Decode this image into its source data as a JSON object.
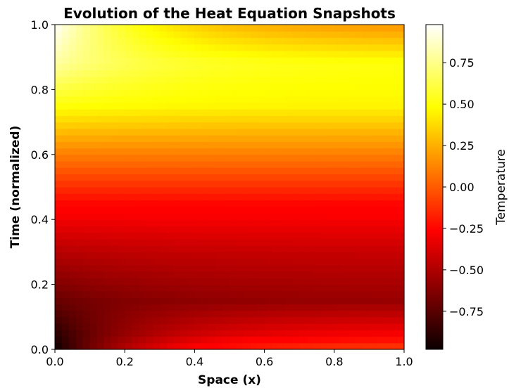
{
  "chart_data": {
    "type": "heatmap",
    "title": "Evolution of the Heat Equation Snapshots",
    "xlabel": "Space (x)",
    "ylabel": "Time (normalized)",
    "xlim": [
      0.0,
      1.0
    ],
    "ylim": [
      0.0,
      1.0
    ],
    "x_ticks": [
      "0.0",
      "0.2",
      "0.4",
      "0.6",
      "0.8",
      "1.0"
    ],
    "y_ticks": [
      "0.0",
      "0.2",
      "0.4",
      "0.6",
      "0.8",
      "1.0"
    ],
    "colormap": "hot",
    "colorbar": {
      "label": "Temperature",
      "range": [
        -0.98,
        0.98
      ],
      "ticks": [
        "−0.75",
        "−0.50",
        "−0.25",
        "0.00",
        "0.25",
        "0.50",
        "0.75"
      ],
      "tick_values": [
        -0.75,
        -0.5,
        -0.25,
        0.0,
        0.25,
        0.5,
        0.75
      ]
    },
    "grid": {
      "nx": 50,
      "ny": 50
    },
    "temperature_profile_by_time": [
      {
        "t": 0.0,
        "value_near_x0": -0.98,
        "value_far": -0.05
      },
      {
        "t": 0.05,
        "value_near_x0": -0.9,
        "value_far": -0.3
      },
      {
        "t": 0.15,
        "value_near_x0": -0.72,
        "value_far": -0.58
      },
      {
        "t": 0.3,
        "value_near_x0": -0.5,
        "value_far": -0.45
      },
      {
        "t": 0.45,
        "value_near_x0": -0.25,
        "value_far": -0.25
      },
      {
        "t": 0.6,
        "value_near_x0": 0.1,
        "value_far": 0.1
      },
      {
        "t": 0.75,
        "value_near_x0": 0.5,
        "value_far": 0.45
      },
      {
        "t": 0.88,
        "value_near_x0": 0.8,
        "value_far": 0.5
      },
      {
        "t": 1.0,
        "value_near_x0": 0.98,
        "value_far": 0.15
      }
    ],
    "colors": {
      "hot_stops": [
        "#0b0000",
        "#ff0000",
        "#ffff00",
        "#ffffff"
      ],
      "frame": "#000000"
    }
  }
}
